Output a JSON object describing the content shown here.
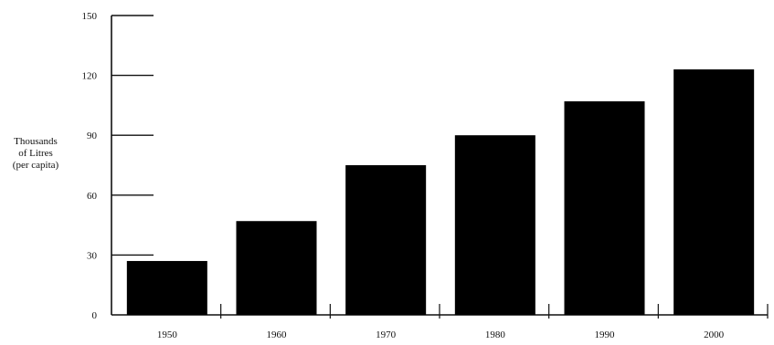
{
  "chart_data": {
    "type": "bar",
    "categories": [
      "1950",
      "1960",
      "1970",
      "1980",
      "1990",
      "2000"
    ],
    "values": [
      27,
      47,
      75,
      90,
      107,
      123
    ],
    "title": "",
    "xlabel": "",
    "ylabel_lines": [
      "Thousands",
      "of Litres",
      "(per capita)"
    ],
    "ylim": [
      0,
      150
    ],
    "yticks": [
      0,
      30,
      60,
      90,
      120,
      150
    ],
    "grid": false,
    "legend": "none",
    "bar_color": "#000000",
    "axis_color": "#111111"
  }
}
